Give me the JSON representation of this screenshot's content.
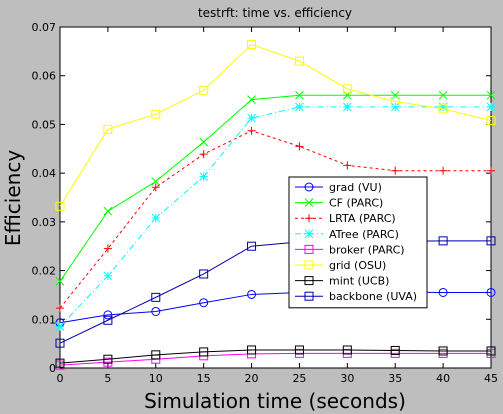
{
  "chart_data": {
    "type": "line",
    "title": "testrft: time vs. efficiency",
    "xlabel": "Simulation time (seconds)",
    "ylabel": "Efficiency",
    "x": [
      0,
      5,
      10,
      15,
      20,
      25,
      30,
      35,
      40,
      45
    ],
    "xlim": [
      0,
      45
    ],
    "ylim": [
      0,
      0.07
    ],
    "xticks": [
      0,
      5,
      10,
      15,
      20,
      25,
      30,
      35,
      40,
      45
    ],
    "yticks": [
      0,
      0.01,
      0.02,
      0.03,
      0.04,
      0.05,
      0.06,
      0.07
    ],
    "ytick_labels": [
      "0",
      "0.01",
      "0.02",
      "0.03",
      "0.04",
      "0.05",
      "0.06",
      "0.07"
    ],
    "grid": false,
    "legend_position": "center-right",
    "series": [
      {
        "name": "grad (VU)",
        "color": "#0000ff",
        "marker": "circle",
        "dash": "solid",
        "values": [
          0.0093,
          0.0109,
          0.0116,
          0.0134,
          0.0151,
          0.0155,
          0.0157,
          0.0156,
          0.0155,
          0.0155
        ]
      },
      {
        "name": "CF (PARC)",
        "color": "#00ff00",
        "marker": "x",
        "dash": "solid",
        "values": [
          0.0178,
          0.0322,
          0.0383,
          0.0464,
          0.0551,
          0.056,
          0.056,
          0.056,
          0.056,
          0.056
        ]
      },
      {
        "name": "LRTA (PARC)",
        "color": "#ff0000",
        "marker": "plus",
        "dash": "dashed",
        "values": [
          0.0123,
          0.0245,
          0.0371,
          0.0439,
          0.0487,
          0.0455,
          0.0416,
          0.0405,
          0.0405,
          0.0405
        ]
      },
      {
        "name": "ATree (PARC)",
        "color": "#00ffff",
        "marker": "star",
        "dash": "dashdot",
        "values": [
          0.0085,
          0.0189,
          0.0308,
          0.0393,
          0.0513,
          0.0536,
          0.0536,
          0.0536,
          0.0536,
          0.0536
        ]
      },
      {
        "name": "broker (PARC)",
        "color": "#ff00ff",
        "marker": "square",
        "dash": "solid",
        "values": [
          0.0006,
          0.0012,
          0.0018,
          0.0025,
          0.0029,
          0.003,
          0.003,
          0.003,
          0.003,
          0.003
        ]
      },
      {
        "name": "grid (OSU)",
        "color": "#ffff00",
        "marker": "square",
        "dash": "solid",
        "values": [
          0.0332,
          0.049,
          0.0521,
          0.057,
          0.0664,
          0.063,
          0.0573,
          0.0547,
          0.0532,
          0.0508
        ]
      },
      {
        "name": "mint (UCB)",
        "color": "#000000",
        "marker": "square",
        "dash": "solid",
        "values": [
          0.001,
          0.0018,
          0.0027,
          0.0033,
          0.0037,
          0.0037,
          0.0037,
          0.0036,
          0.0035,
          0.0035
        ]
      },
      {
        "name": "backbone (UVA)",
        "color": "#0000aa",
        "marker": "square",
        "dash": "solid",
        "values": [
          0.0051,
          0.0098,
          0.0145,
          0.0193,
          0.025,
          0.0259,
          0.026,
          0.026,
          0.0261,
          0.0261
        ]
      }
    ]
  }
}
